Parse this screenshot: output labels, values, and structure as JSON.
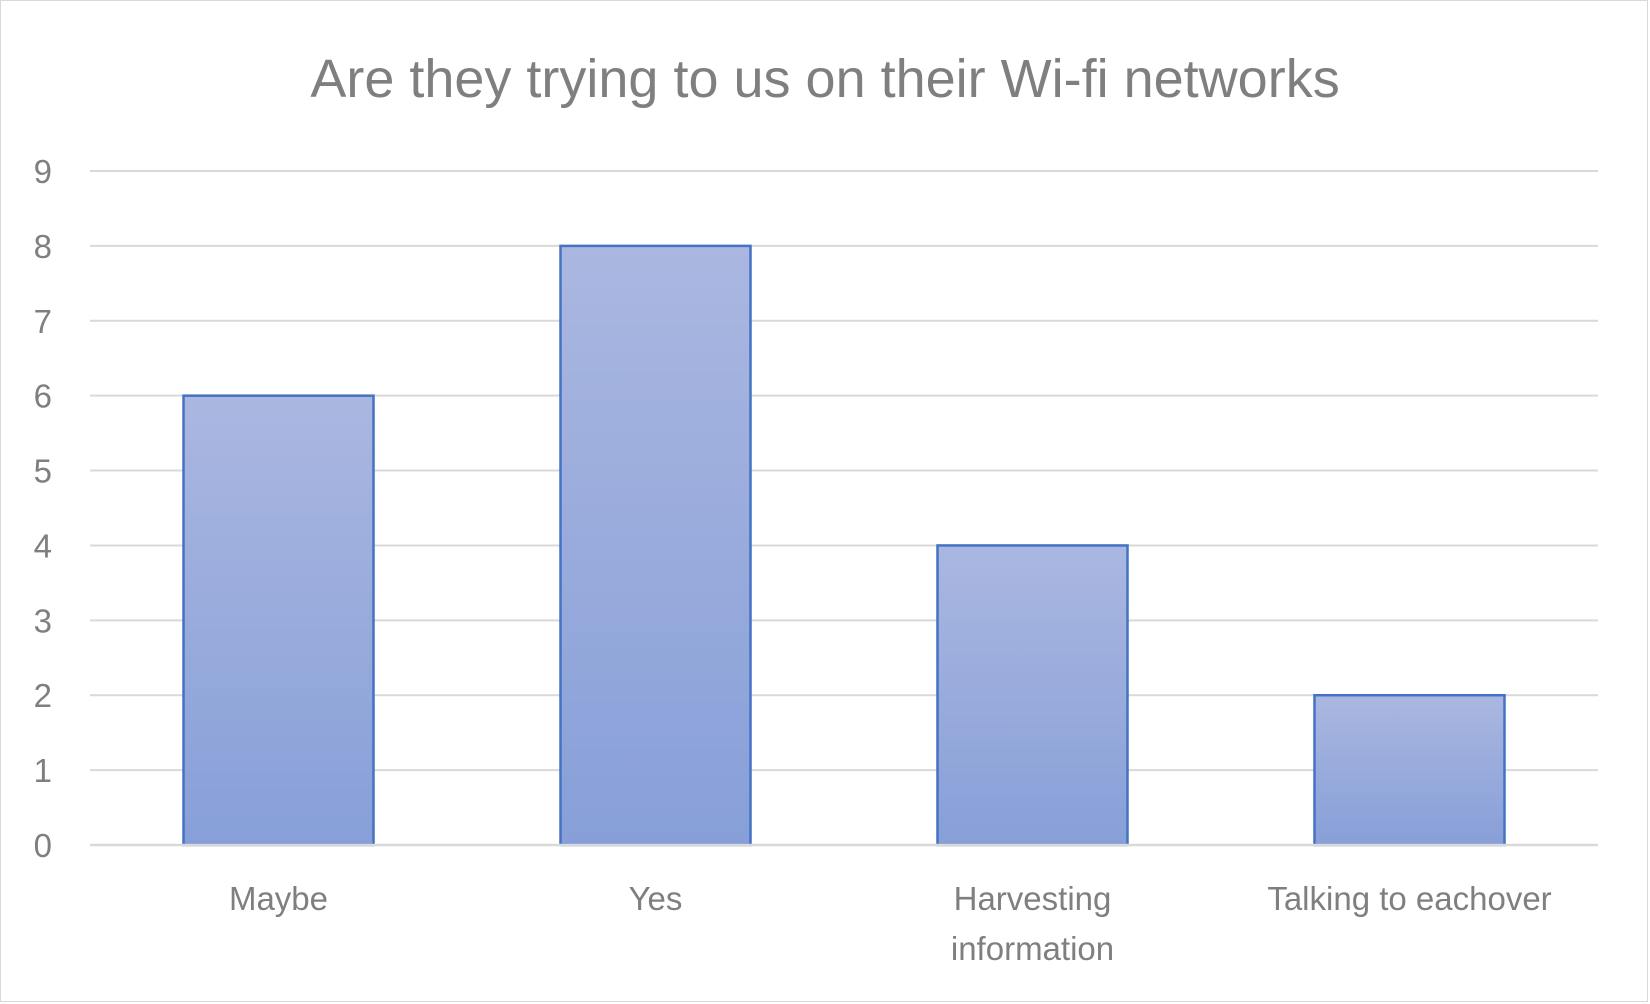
{
  "chart_data": {
    "type": "bar",
    "title": "Are they trying to us on their Wi-fi networks",
    "categories": [
      [
        "Maybe"
      ],
      [
        "Yes"
      ],
      [
        "Harvesting",
        "information"
      ],
      [
        "Talking to eachover"
      ]
    ],
    "values": [
      6,
      8,
      4,
      2
    ],
    "ylim": [
      0,
      9
    ],
    "yticks": [
      0,
      1,
      2,
      3,
      4,
      5,
      6,
      7,
      8,
      9
    ],
    "grid": true,
    "legend": "none",
    "colors": {
      "bar_fill_top": "#aab7e0",
      "bar_fill_bottom": "#879fd8",
      "bar_stroke": "#4472c4",
      "grid": "#d9d9d9",
      "text": "#7f7f7f"
    }
  }
}
